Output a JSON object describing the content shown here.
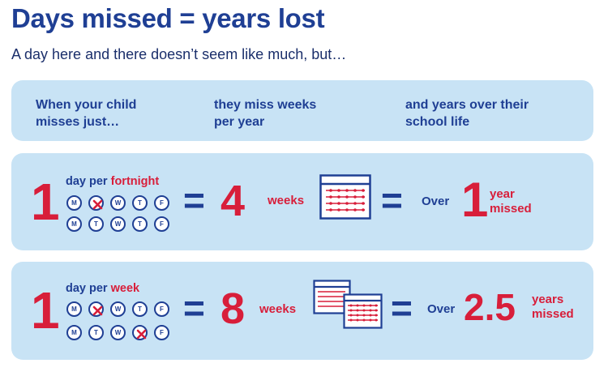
{
  "title": "Days missed = years lost",
  "subtitle": "A day here and there doesn’t seem like much, but…",
  "header": {
    "col1": "When your child\nmisses just…",
    "col2": "they miss weeks\nper year",
    "col3": "and years over their\nschool life"
  },
  "rows": [
    {
      "count": "1",
      "freq_prefix": "day per ",
      "freq_highlight": "fortnight",
      "week1": [
        "M",
        "T",
        "W",
        "T",
        "F"
      ],
      "week2": [
        "M",
        "T",
        "W",
        "T",
        "F"
      ],
      "equals1": "=",
      "weeks_num": "4",
      "weeks_label": "weeks",
      "equals2": "=",
      "over": "Over",
      "years_num": "1",
      "years_label": "year\nmissed"
    },
    {
      "count": "1",
      "freq_prefix": "day per ",
      "freq_highlight": "week",
      "week1": [
        "M",
        "T",
        "W",
        "T",
        "F"
      ],
      "week2": [
        "M",
        "T",
        "W",
        "T",
        "F"
      ],
      "equals1": "=",
      "weeks_num": "8",
      "weeks_label": "weeks",
      "equals2": "=",
      "over": "Over",
      "years_num": "2.5",
      "years_label": "years\nmissed"
    }
  ],
  "colors": {
    "navy": "#1f3f94",
    "red": "#d81e3a",
    "panel": "#c8e3f5"
  },
  "icons": {
    "missed_day": "cross-circle-icon",
    "calendar": "calendar-icon"
  }
}
